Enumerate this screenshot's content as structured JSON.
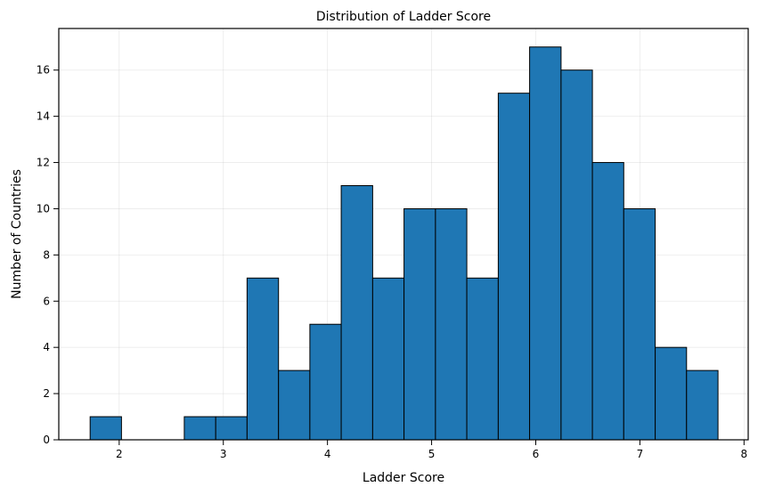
{
  "chart_data": {
    "type": "bar",
    "title": "Distribution of Ladder Score",
    "xlabel": "Ladder Score",
    "ylabel": "Number of Countries",
    "xlim": [
      1.42,
      8.04
    ],
    "ylim": [
      0,
      17.8
    ],
    "xticks": [
      2,
      3,
      4,
      5,
      6,
      7,
      8
    ],
    "yticks": [
      0,
      2,
      4,
      6,
      8,
      10,
      12,
      14,
      16
    ],
    "grid": true,
    "bins": [
      {
        "x0": 1.721,
        "x1": 2.022,
        "count": 1
      },
      {
        "x0": 2.022,
        "x1": 2.324,
        "count": 0
      },
      {
        "x0": 2.324,
        "x1": 2.625,
        "count": 0
      },
      {
        "x0": 2.625,
        "x1": 2.927,
        "count": 1
      },
      {
        "x0": 2.927,
        "x1": 3.228,
        "count": 1
      },
      {
        "x0": 3.228,
        "x1": 3.53,
        "count": 7
      },
      {
        "x0": 3.53,
        "x1": 3.831,
        "count": 3
      },
      {
        "x0": 3.831,
        "x1": 4.132,
        "count": 5
      },
      {
        "x0": 4.132,
        "x1": 4.434,
        "count": 11
      },
      {
        "x0": 4.434,
        "x1": 4.735,
        "count": 7
      },
      {
        "x0": 4.735,
        "x1": 5.037,
        "count": 10
      },
      {
        "x0": 5.037,
        "x1": 5.338,
        "count": 10
      },
      {
        "x0": 5.338,
        "x1": 5.64,
        "count": 7
      },
      {
        "x0": 5.64,
        "x1": 5.941,
        "count": 15
      },
      {
        "x0": 5.941,
        "x1": 6.243,
        "count": 17
      },
      {
        "x0": 6.243,
        "x1": 6.544,
        "count": 16
      },
      {
        "x0": 6.544,
        "x1": 6.845,
        "count": 12
      },
      {
        "x0": 6.845,
        "x1": 7.147,
        "count": 10
      },
      {
        "x0": 7.147,
        "x1": 7.448,
        "count": 4
      },
      {
        "x0": 7.448,
        "x1": 7.75,
        "count": 3
      }
    ],
    "colors": {
      "bar": "#1f77b4",
      "edge": "#000000"
    }
  }
}
